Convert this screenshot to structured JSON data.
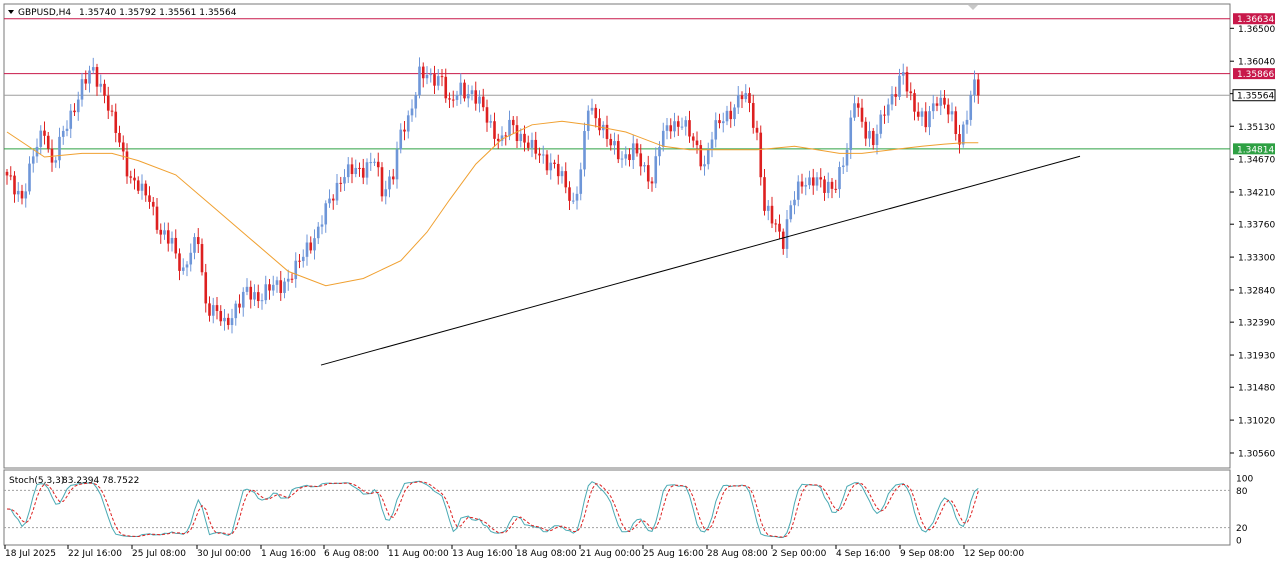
{
  "header": {
    "symbol": "GBPUSD,H4",
    "ohlc": "1.35740 1.35792 1.35561 1.35564"
  },
  "indicator": {
    "label": "Stoch(5,3,3)",
    "values": "83.2394 78.7522",
    "levels": [
      80,
      20
    ],
    "scale_labels": [
      "100",
      "80",
      "20",
      "0"
    ]
  },
  "colors": {
    "bull": "#6e96d8",
    "bear": "#dd2020",
    "ma": "#f0a030",
    "resistance": "#c8184a",
    "support": "#2ea043",
    "bid": "#9e9e9e",
    "stoch_main": "#4aaab4",
    "stoch_signal": "#dd2020"
  },
  "price_axis": {
    "labels": [
      "1.36500",
      "1.36040",
      "1.35586",
      "1.35130",
      "1.34670",
      "1.34210",
      "1.33760",
      "1.33300",
      "1.32840",
      "1.32390",
      "1.31930",
      "1.31480",
      "1.31020",
      "1.30560"
    ]
  },
  "levels": {
    "upper": "1.36634",
    "resistance": "1.35866",
    "bid": "1.35564",
    "support": "1.34814"
  },
  "time_axis": {
    "labels": [
      "18 Jul 2025",
      "22 Jul 16:00",
      "25 Jul 08:00",
      "30 Jul 00:00",
      "1 Aug 16:00",
      "6 Aug 08:00",
      "11 Aug 00:00",
      "13 Aug 16:00",
      "18 Aug 08:00",
      "21 Aug 00:00",
      "25 Aug 16:00",
      "28 Aug 08:00",
      "2 Sep 00:00",
      "4 Sep 16:00",
      "9 Sep 08:00",
      "12 Sep 00:00"
    ]
  },
  "chart_data": {
    "type": "candlestick",
    "symbol": "GBPUSD",
    "timeframe": "H4",
    "ylim": [
      1.3035,
      1.3684
    ],
    "anchors": [
      [
        0,
        1.344
      ],
      [
        2,
        1.3425
      ],
      [
        4,
        1.3415
      ],
      [
        7,
        1.347
      ],
      [
        10,
        1.351
      ],
      [
        12,
        1.346
      ],
      [
        16,
        1.3515
      ],
      [
        20,
        1.357
      ],
      [
        23,
        1.359
      ],
      [
        26,
        1.356
      ],
      [
        28,
        1.352
      ],
      [
        30,
        1.349
      ],
      [
        33,
        1.344
      ],
      [
        36,
        1.342
      ],
      [
        38,
        1.3415
      ],
      [
        41,
        1.336
      ],
      [
        44,
        1.335
      ],
      [
        47,
        1.331
      ],
      [
        49,
        1.3335
      ],
      [
        51,
        1.3355
      ],
      [
        53,
        1.3265
      ],
      [
        56,
        1.325
      ],
      [
        58,
        1.3235
      ],
      [
        61,
        1.326
      ],
      [
        64,
        1.328
      ],
      [
        67,
        1.3275
      ],
      [
        70,
        1.3285
      ],
      [
        73,
        1.3292
      ],
      [
        75,
        1.33
      ],
      [
        77,
        1.3312
      ],
      [
        80,
        1.3345
      ],
      [
        83,
        1.3365
      ],
      [
        86,
        1.341
      ],
      [
        89,
        1.344
      ],
      [
        92,
        1.345
      ],
      [
        95,
        1.3455
      ],
      [
        98,
        1.3465
      ],
      [
        100,
        1.342
      ],
      [
        103,
        1.345
      ],
      [
        105,
        1.35
      ],
      [
        107,
        1.352
      ],
      [
        110,
        1.359
      ],
      [
        113,
        1.3575
      ],
      [
        116,
        1.3585
      ],
      [
        118,
        1.354
      ],
      [
        121,
        1.3565
      ],
      [
        124,
        1.356
      ],
      [
        127,
        1.3535
      ],
      [
        130,
        1.3505
      ],
      [
        132,
        1.349
      ],
      [
        134,
        1.3515
      ],
      [
        137,
        1.35
      ],
      [
        140,
        1.348
      ],
      [
        143,
        1.347
      ],
      [
        146,
        1.3455
      ],
      [
        149,
        1.343
      ],
      [
        151,
        1.3405
      ],
      [
        153,
        1.345
      ],
      [
        155,
        1.354
      ],
      [
        158,
        1.352
      ],
      [
        161,
        1.3485
      ],
      [
        164,
        1.347
      ],
      [
        167,
        1.348
      ],
      [
        170,
        1.345
      ],
      [
        172,
        1.344
      ],
      [
        174,
        1.349
      ],
      [
        177,
        1.3515
      ],
      [
        180,
        1.352
      ],
      [
        182,
        1.35
      ],
      [
        184,
        1.348
      ],
      [
        186,
        1.346
      ],
      [
        188,
        1.35
      ],
      [
        191,
        1.3525
      ],
      [
        194,
        1.354
      ],
      [
        196,
        1.3555
      ],
      [
        198,
        1.3545
      ],
      [
        200,
        1.35
      ],
      [
        202,
        1.3395
      ],
      [
        205,
        1.3375
      ],
      [
        207,
        1.3355
      ],
      [
        209,
        1.34
      ],
      [
        212,
        1.3435
      ],
      [
        215,
        1.344
      ],
      [
        218,
        1.3425
      ],
      [
        221,
        1.3435
      ],
      [
        224,
        1.3475
      ],
      [
        226,
        1.3555
      ],
      [
        229,
        1.3505
      ],
      [
        231,
        1.3485
      ],
      [
        234,
        1.354
      ],
      [
        237,
        1.356
      ],
      [
        239,
        1.3585
      ],
      [
        241,
        1.3555
      ],
      [
        243,
        1.353
      ],
      [
        245,
        1.3515
      ],
      [
        248,
        1.3555
      ],
      [
        250,
        1.3545
      ],
      [
        252,
        1.352
      ],
      [
        254,
        1.349
      ],
      [
        256,
        1.3535
      ],
      [
        258,
        1.3572
      ],
      [
        259,
        1.3556
      ]
    ],
    "moving_average": [
      [
        0,
        1.3505
      ],
      [
        10,
        1.347
      ],
      [
        20,
        1.3475
      ],
      [
        28,
        1.3475
      ],
      [
        35,
        1.3465
      ],
      [
        45,
        1.3445
      ],
      [
        55,
        1.34
      ],
      [
        65,
        1.3355
      ],
      [
        75,
        1.331
      ],
      [
        85,
        1.329
      ],
      [
        95,
        1.33
      ],
      [
        105,
        1.3325
      ],
      [
        112,
        1.3365
      ],
      [
        118,
        1.341
      ],
      [
        125,
        1.346
      ],
      [
        132,
        1.3495
      ],
      [
        140,
        1.3515
      ],
      [
        148,
        1.352
      ],
      [
        155,
        1.3515
      ],
      [
        165,
        1.3505
      ],
      [
        175,
        1.3485
      ],
      [
        182,
        1.348
      ],
      [
        190,
        1.348
      ],
      [
        200,
        1.348
      ],
      [
        210,
        1.3485
      ],
      [
        216,
        1.348
      ],
      [
        222,
        1.3475
      ],
      [
        228,
        1.3475
      ],
      [
        236,
        1.348
      ],
      [
        244,
        1.3485
      ],
      [
        250,
        1.3488
      ],
      [
        255,
        1.349
      ],
      [
        259,
        1.349
      ]
    ],
    "trendline": {
      "from": [
        "1 Aug 16:00",
        1.3179
      ],
      "to": [
        "15 Sep",
        1.3471
      ]
    },
    "horizontal_lines": [
      1.36634,
      1.35866,
      1.35564,
      1.34814
    ],
    "stochastic": {
      "k_period": 5,
      "d_period": 3,
      "slowing": 3,
      "main": 83.2394,
      "signal": 78.7522,
      "levels": [
        80,
        20
      ],
      "ylim": [
        0,
        100
      ]
    }
  }
}
